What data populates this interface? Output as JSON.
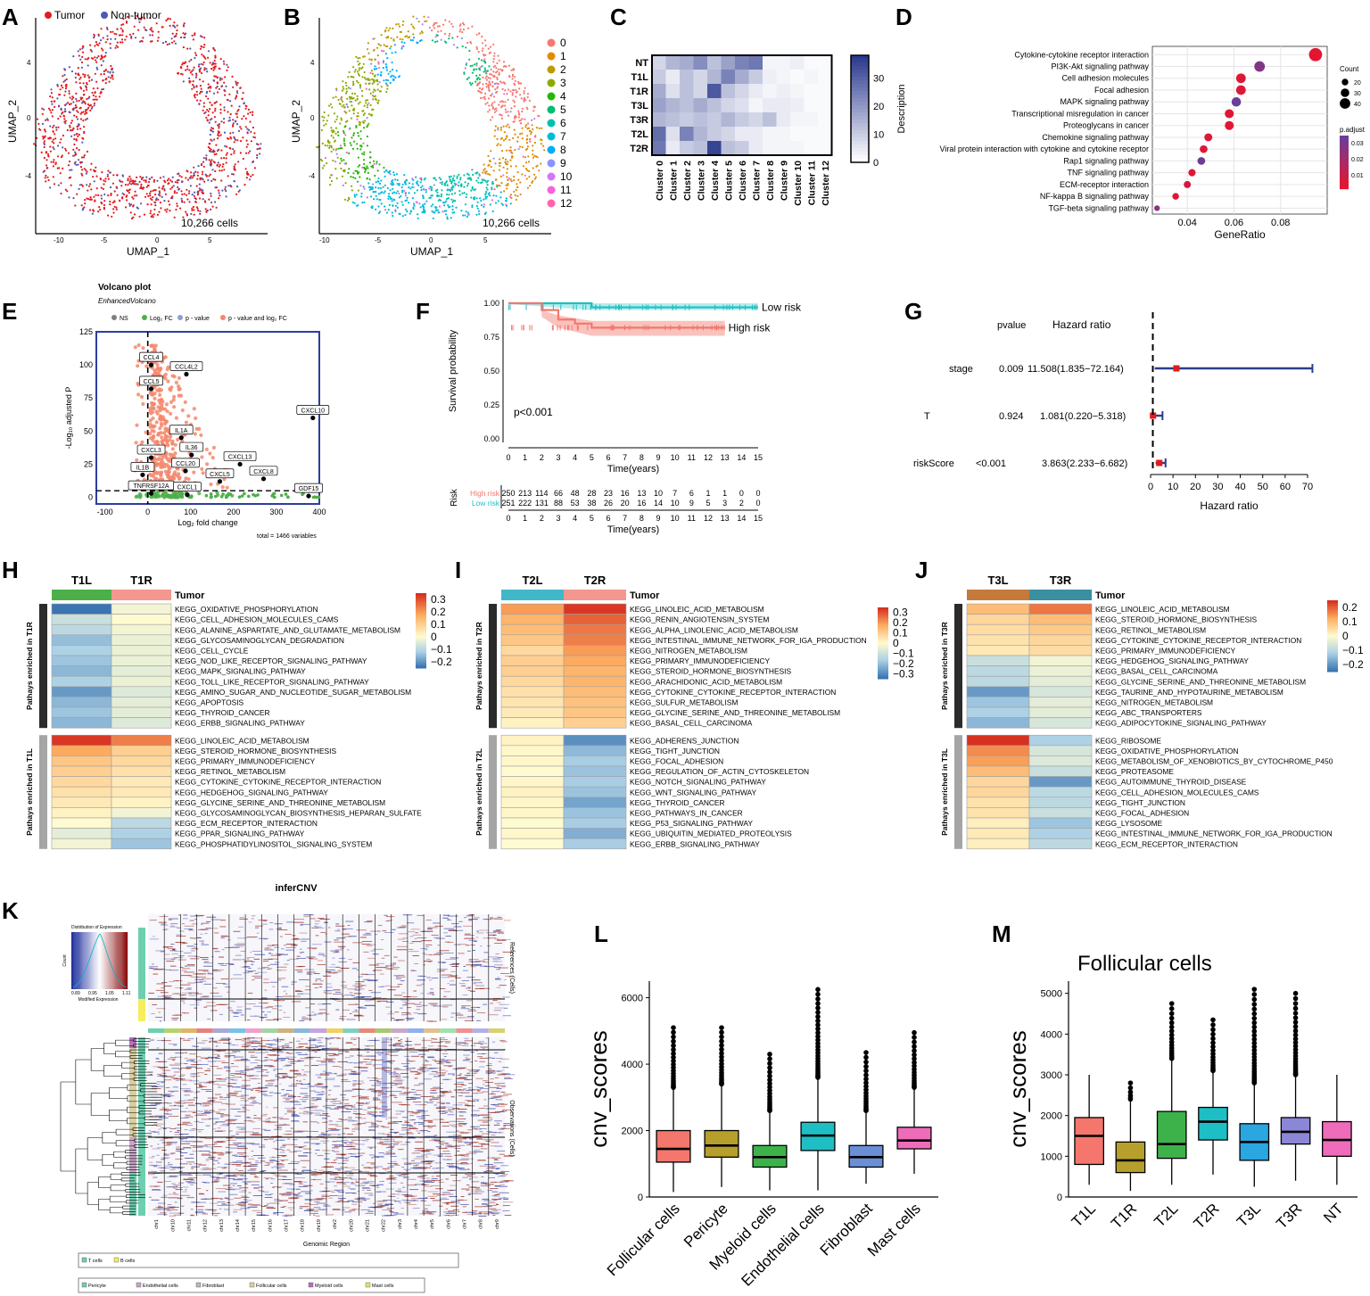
{
  "figure": {
    "panel_letters": [
      "A",
      "B",
      "C",
      "D",
      "E",
      "F",
      "G",
      "H",
      "I",
      "J",
      "K",
      "L",
      "M"
    ]
  },
  "panelA": {
    "legend": [
      "Tumor",
      "Non-tumor"
    ],
    "colors": {
      "tumor": "#e41a1c",
      "nontumor": "#4a5bb8"
    },
    "xlabel": "UMAP_1",
    "ylabel": "UMAP_2",
    "cells": "10,266 cells",
    "xticks": [
      "-10",
      "-5",
      "0",
      "5"
    ],
    "yticks": [
      "4",
      "0",
      "-4"
    ]
  },
  "panelB": {
    "xlabel": "UMAP_1",
    "ylabel": "UMAP_2",
    "cells": "10,266 cells",
    "xticks": [
      "-10",
      "-5",
      "0",
      "5"
    ],
    "yticks": [
      "4",
      "0",
      "-4"
    ],
    "clusters": [
      "0",
      "1",
      "2",
      "3",
      "4",
      "5",
      "6",
      "7",
      "8",
      "9",
      "10",
      "11",
      "12"
    ],
    "cluster_colors": [
      "#f8766d",
      "#e18a00",
      "#be9c00",
      "#8cab00",
      "#24b700",
      "#00be70",
      "#00c1ab",
      "#00bbda",
      "#00acfc",
      "#8b93ff",
      "#d575fe",
      "#f962dd",
      "#ff65ac"
    ]
  },
  "panelC": {
    "rows": [
      "NT",
      "T1L",
      "T1R",
      "T3L",
      "T3R",
      "T2L",
      "T2R"
    ],
    "cols": [
      "Cluster 0",
      "Cluster 1",
      "Cluster 2",
      "Cluster 3",
      "Cluster 4",
      "Cluster 5",
      "Cluster 6",
      "Cluster 7",
      "Cluster 8",
      "Cluster 9",
      "Cluster 10",
      "Cluster 11",
      "Cluster 12"
    ],
    "legend_title": "Description",
    "legend_ticks": [
      "30",
      "20",
      "10",
      "0"
    ],
    "values": [
      [
        8,
        14,
        16,
        22,
        12,
        18,
        24,
        26,
        2,
        2,
        3,
        1,
        1
      ],
      [
        10,
        4,
        12,
        8,
        14,
        24,
        16,
        10,
        3,
        2,
        1,
        2,
        1
      ],
      [
        16,
        6,
        12,
        8,
        32,
        12,
        8,
        4,
        2,
        3,
        2,
        1,
        1
      ],
      [
        18,
        14,
        12,
        16,
        12,
        8,
        6,
        2,
        4,
        4,
        3,
        1,
        1
      ],
      [
        14,
        12,
        10,
        12,
        10,
        14,
        10,
        8,
        12,
        4,
        2,
        2,
        1
      ],
      [
        28,
        6,
        24,
        14,
        10,
        8,
        4,
        4,
        2,
        2,
        1,
        1,
        1
      ],
      [
        26,
        4,
        10,
        12,
        36,
        12,
        10,
        4,
        2,
        2,
        2,
        1,
        1
      ]
    ]
  },
  "panelD": {
    "pathways": [
      "Cytokine-cytokine receptor interaction",
      "PI3K-Akt signaling pathway",
      "Cell adhesion molecules",
      "Focal adhesion",
      "MAPK signaling pathway",
      "Transcriptional misregulation in cancer",
      "Proteoglycans in cancer",
      "Chemokine signaling pathway",
      "Viral protein interaction with cytokine and cytokine receptor",
      "Rap1 signaling pathway",
      "TNF signaling pathway",
      "ECM-receptor interaction",
      "NF-kappa B signaling pathway",
      "TGF-beta signaling pathway"
    ],
    "gene_ratio": [
      0.095,
      0.071,
      0.063,
      0.063,
      0.061,
      0.058,
      0.058,
      0.049,
      0.047,
      0.046,
      0.042,
      0.04,
      0.035,
      0.027
    ],
    "count": [
      45,
      34,
      30,
      30,
      29,
      27,
      27,
      23,
      22,
      22,
      20,
      19,
      17,
      13
    ],
    "padj": [
      0.002,
      0.03,
      0.004,
      0.004,
      0.036,
      0.003,
      0.003,
      0.004,
      0.004,
      0.035,
      0.005,
      0.006,
      0.004,
      0.028
    ],
    "xlabel": "GeneRatio",
    "xticks": [
      "0.04",
      "0.06",
      "0.08"
    ],
    "legend_count_title": "Count",
    "legend_count": [
      "20",
      "30",
      "40"
    ],
    "legend_padj_title": "p.adjust",
    "legend_padj": [
      "0.03",
      "0.02",
      "0.01"
    ]
  },
  "panelE": {
    "title": "Volcano plot",
    "subtitle": "EnhancedVolcano",
    "legend": [
      "NS",
      "Log₂ FC",
      "p - value",
      "p - value and log₂ FC"
    ],
    "legend_colors": [
      "#808080",
      "#4daf4a",
      "#8da0cb",
      "#f4876c"
    ],
    "ylabel": "-Log₁₀ adjusted P",
    "xlabel": "Log₂ fold change",
    "xticks": [
      "-100",
      "0",
      "100",
      "200",
      "300",
      "400"
    ],
    "yticks": [
      "0",
      "25",
      "50",
      "75",
      "100",
      "125"
    ],
    "genes": [
      {
        "name": "CCL4",
        "x": 8,
        "y": 100
      },
      {
        "name": "CCL4L2",
        "x": 90,
        "y": 93
      },
      {
        "name": "CCL5",
        "x": 8,
        "y": 82
      },
      {
        "name": "CXCL10",
        "x": 385,
        "y": 60
      },
      {
        "name": "IL1A",
        "x": 78,
        "y": 45
      },
      {
        "name": "IL36",
        "x": 102,
        "y": 32
      },
      {
        "name": "CXCL3",
        "x": 8,
        "y": 30
      },
      {
        "name": "CXCL13",
        "x": 215,
        "y": 25
      },
      {
        "name": "CCL20",
        "x": 88,
        "y": 20
      },
      {
        "name": "IL1B",
        "x": -12,
        "y": 17
      },
      {
        "name": "CXCL8",
        "x": 270,
        "y": 14
      },
      {
        "name": "CXCL5",
        "x": 168,
        "y": 12
      },
      {
        "name": "TNFRSF12A",
        "x": 8,
        "y": 3
      },
      {
        "name": "CXCL1",
        "x": 92,
        "y": 2
      },
      {
        "name": "GDF15",
        "x": 375,
        "y": 1
      }
    ],
    "footer": "total = 1466 variables"
  },
  "panelF": {
    "ylabel": "Survival probability",
    "xlabel": "Time(years)",
    "pvalue": "p<0.001",
    "series": [
      {
        "name": "Low risk",
        "color": "#1fbfc3",
        "times": [
          0,
          5,
          15
        ],
        "surv": [
          1.0,
          0.97,
          0.97
        ]
      },
      {
        "name": "High risk",
        "color": "#f4766d",
        "times": [
          0,
          2,
          3,
          4,
          5,
          13
        ],
        "surv": [
          1.0,
          0.95,
          0.88,
          0.85,
          0.82,
          0.82
        ]
      }
    ],
    "yticks": [
      "0.00",
      "0.25",
      "0.50",
      "0.75",
      "1.00"
    ],
    "xticks": [
      "0",
      "1",
      "2",
      "3",
      "4",
      "5",
      "6",
      "7",
      "8",
      "9",
      "10",
      "11",
      "12",
      "13",
      "14",
      "15"
    ],
    "risk_title": "Risk",
    "risk_table": {
      "High risk": [
        "250",
        "213",
        "114",
        "66",
        "48",
        "28",
        "23",
        "16",
        "13",
        "10",
        "7",
        "6",
        "1",
        "1",
        "0",
        "0"
      ],
      "Low risk": [
        "251",
        "222",
        "131",
        "88",
        "53",
        "38",
        "26",
        "20",
        "16",
        "14",
        "10",
        "9",
        "5",
        "3",
        "2",
        "0"
      ]
    }
  },
  "panelG": {
    "headers": [
      "pvalue",
      "Hazard ratio"
    ],
    "rows": [
      {
        "name": "stage",
        "pvalue": "0.009",
        "hr": "11.508(1.835−72.164)",
        "est": 11.508,
        "lo": 1.835,
        "hi": 72.164
      },
      {
        "name": "T",
        "pvalue": "0.924",
        "hr": "1.081(0.220−5.318)",
        "est": 1.081,
        "lo": 0.22,
        "hi": 5.318
      },
      {
        "name": "riskScore",
        "pvalue": "<0.001",
        "hr": "3.863(2.233−6.682)",
        "est": 3.863,
        "lo": 2.233,
        "hi": 6.682
      }
    ],
    "xlabel": "Hazard ratio",
    "xticks": [
      "0",
      "10",
      "20",
      "30",
      "40",
      "50",
      "60",
      "70"
    ]
  },
  "panelH": {
    "cols": [
      "T1L",
      "T1R"
    ],
    "col_colors": [
      "#4daf4a",
      "#f4978e"
    ],
    "tumor_label": "Tumor",
    "group1": "Pathays enriched in T1R",
    "group2": "Pathays enriched in T1L",
    "legend": [
      "0.3",
      "0.2",
      "0.1",
      "0",
      "−0.1",
      "−0.2"
    ],
    "lmin": -0.25,
    "lmax": 0.35,
    "pathways": [
      "KEGG_OXIDATIVE_PHOSPHORYLATION",
      "KEGG_CELL_ADHESION_MOLECULES_CAMS",
      "KEGG_ALANINE_ASPARTATE_AND_GLUTAMATE_METABOLISM",
      "KEGG_GLYCOSAMINOGLYCAN_DEGRADATION",
      "KEGG_CELL_CYCLE",
      "KEGG_NOD_LIKE_RECEPTOR_SIGNALING_PATHWAY",
      "KEGG_MAPK_SIGNALING_PATHWAY",
      "KEGG_TOLL_LIKE_RECEPTOR_SIGNALING_PATHWAY",
      "KEGG_AMINO_SUGAR_AND_NUCLEOTIDE_SUGAR_METABOLISM",
      "KEGG_APOPTOSIS",
      "KEGG_THYROID_CANCER",
      "KEGG_ERBB_SIGNALING_PATHWAY",
      "KEGG_LINOLEIC_ACID_METABOLISM",
      "KEGG_STEROID_HORMONE_BIOSYNTHESIS",
      "KEGG_PRIMARY_IMMUNODEFICIENCY",
      "KEGG_RETINOL_METABOLISM",
      "KEGG_CYTOKINE_CYTOKINE_RECEPTOR_INTERACTION",
      "KEGG_HEDGEHOG_SIGNALING_PATHWAY",
      "KEGG_GLYCINE_SERINE_AND_THREONINE_METABOLISM",
      "KEGG_GLYCOSAMINOGLYCAN_BIOSYNTHESIS_HEPARAN_SULFATE",
      "KEGG_ECM_RECEPTOR_INTERACTION",
      "KEGG_PPAR_SIGNALING_PATHWAY",
      "KEGG_PHOSPHATIDYLINOSITOL_SIGNALING_SYSTEM"
    ],
    "values": [
      [
        -0.25,
        -0.02
      ],
      [
        -0.08,
        0.0
      ],
      [
        -0.1,
        -0.02
      ],
      [
        -0.15,
        -0.03
      ],
      [
        -0.12,
        -0.03
      ],
      [
        -0.14,
        -0.03
      ],
      [
        -0.16,
        -0.04
      ],
      [
        -0.12,
        -0.03
      ],
      [
        -0.2,
        -0.05
      ],
      [
        -0.16,
        -0.04
      ],
      [
        -0.14,
        -0.04
      ],
      [
        -0.16,
        -0.05
      ],
      [
        0.34,
        0.24
      ],
      [
        0.18,
        0.1
      ],
      [
        0.12,
        0.08
      ],
      [
        0.1,
        0.06
      ],
      [
        0.08,
        0.04
      ],
      [
        0.06,
        0.04
      ],
      [
        0.04,
        0.02
      ],
      [
        0.02,
        -0.02
      ],
      [
        0.0,
        -0.1
      ],
      [
        -0.04,
        -0.12
      ],
      [
        -0.02,
        -0.14
      ]
    ]
  },
  "panelI": {
    "cols": [
      "T2L",
      "T2R"
    ],
    "col_colors": [
      "#40b8c8",
      "#f4978e"
    ],
    "tumor_label": "Tumor",
    "group1": "Pathays enriched in T2R",
    "group2": "Pathays enriched in T2L",
    "legend": [
      "0.3",
      "0.2",
      "0.1",
      "0",
      "−0.1",
      "−0.2",
      "−0.3"
    ],
    "lmin": -0.35,
    "lmax": 0.35,
    "pathways": [
      "KEGG_LINOLEIC_ACID_METABOLISM",
      "KEGG_RENIN_ANGIOTENSIN_SYSTEM",
      "KEGG_ALPHA_LINOLENIC_ACID_METABOLISM",
      "KEGG_INTESTINAL_IMMUNE_NETWORK_FOR_IGA_PRODUCTION",
      "KEGG_NITROGEN_METABOLISM",
      "KEGG_PRIMARY_IMMUNODEFICIENCY",
      "KEGG_STEROID_HORMONE_BIOSYNTHESIS",
      "KEGG_ARACHIDONIC_ACID_METABOLISM",
      "KEGG_CYTOKINE_CYTOKINE_RECEPTOR_INTERACTION",
      "KEGG_SULFUR_METABOLISM",
      "KEGG_GLYCINE_SERINE_AND_THREONINE_METABOLISM",
      "KEGG_BASAL_CELL_CARCINOMA",
      "KEGG_ADHERENS_JUNCTION",
      "KEGG_TIGHT_JUNCTION",
      "KEGG_FOCAL_ADHESION",
      "KEGG_REGULATION_OF_ACTIN_CYTOSKELETON",
      "KEGG_NOTCH_SIGNALING_PATHWAY",
      "KEGG_WNT_SIGNALING_PATHWAY",
      "KEGG_THYROID_CANCER",
      "KEGG_PATHWAYS_IN_CANCER",
      "KEGG_P53_SIGNALING_PATHWAY",
      "KEGG_UBIQUITIN_MEDIATED_PROTEOLYSIS",
      "KEGG_ERBB_SIGNALING_PATHWAY"
    ],
    "values": [
      [
        0.2,
        0.34
      ],
      [
        0.16,
        0.28
      ],
      [
        0.14,
        0.25
      ],
      [
        0.12,
        0.24
      ],
      [
        0.08,
        0.2
      ],
      [
        0.1,
        0.18
      ],
      [
        0.1,
        0.16
      ],
      [
        0.08,
        0.16
      ],
      [
        0.06,
        0.14
      ],
      [
        0.05,
        0.13
      ],
      [
        0.04,
        0.12
      ],
      [
        0.02,
        0.1
      ],
      [
        0.02,
        -0.3
      ],
      [
        0.01,
        -0.22
      ],
      [
        0.01,
        -0.18
      ],
      [
        0.0,
        -0.2
      ],
      [
        0.01,
        -0.18
      ],
      [
        0.02,
        -0.2
      ],
      [
        0.01,
        -0.26
      ],
      [
        0.01,
        -0.2
      ],
      [
        0.0,
        -0.18
      ],
      [
        0.01,
        -0.24
      ],
      [
        0.0,
        -0.18
      ]
    ]
  },
  "panelJ": {
    "cols": [
      "T3L",
      "T3R"
    ],
    "col_colors": [
      "#c47a3a",
      "#3a8fa0"
    ],
    "tumor_label": "Tumor",
    "group1": "Pathays enriched in T3R",
    "group2": "Pathays enriched in T3L",
    "legend": [
      "0.2",
      "0.1",
      "0",
      "−0.1",
      "−0.2"
    ],
    "lmin": -0.25,
    "lmax": 0.25,
    "pathways": [
      "KEGG_LINOLEIC_ACID_METABOLISM",
      "KEGG_STEROID_HORMONE_BIOSYNTHESIS",
      "KEGG_RETINOL_METABOLISM",
      "KEGG_CYTOKINE_CYTOKINE_RECEPTOR_INTERACTION",
      "KEGG_PRIMARY_IMMUNODEFICIENCY",
      "KEGG_HEDGEHOG_SIGNALING_PATHWAY",
      "KEGG_BASAL_CELL_CARCINOMA",
      "KEGG_GLYCINE_SERINE_AND_THREONINE_METABOLISM",
      "KEGG_TAURINE_AND_HYPOTAURINE_METABOLISM",
      "KEGG_NITROGEN_METABOLISM",
      "KEGG_ABC_TRANSPORTERS",
      "KEGG_ADIPOCYTOKINE_SIGNALING_PATHWAY",
      "KEGG_RIBOSOME",
      "KEGG_OXIDATIVE_PHOSPHORYLATION",
      "KEGG_METABOLISM_OF_XENOBIOTICS_BY_CYTOCHROME_P450",
      "KEGG_PROTEASOME",
      "KEGG_AUTOIMMUNE_THYROID_DISEASE",
      "KEGG_CELL_ADHESION_MOLECULES_CAMS",
      "KEGG_TIGHT_JUNCTION",
      "KEGG_FOCAL_ADHESION",
      "KEGG_LYSOSOME",
      "KEGG_INTESTINAL_IMMUNE_NETWORK_FOR_IGA_PRODUCTION",
      "KEGG_ECM_RECEPTOR_INTERACTION"
    ],
    "values": [
      [
        0.1,
        0.18
      ],
      [
        0.06,
        0.1
      ],
      [
        0.05,
        0.08
      ],
      [
        0.04,
        0.06
      ],
      [
        0.03,
        0.05
      ],
      [
        -0.08,
        -0.02
      ],
      [
        -0.1,
        -0.03
      ],
      [
        -0.1,
        -0.04
      ],
      [
        -0.2,
        -0.06
      ],
      [
        -0.14,
        -0.04
      ],
      [
        -0.12,
        -0.04
      ],
      [
        -0.16,
        -0.06
      ],
      [
        0.25,
        -0.12
      ],
      [
        0.16,
        -0.06
      ],
      [
        0.14,
        -0.05
      ],
      [
        0.1,
        -0.08
      ],
      [
        0.06,
        -0.2
      ],
      [
        0.06,
        -0.1
      ],
      [
        0.04,
        -0.1
      ],
      [
        0.04,
        -0.08
      ],
      [
        0.02,
        -0.14
      ],
      [
        0.03,
        -0.12
      ],
      [
        0.02,
        -0.1
      ]
    ]
  },
  "panelK": {
    "title": "inferCNV",
    "color_key_title": "Distribution of Expression",
    "color_key_xlabel": "Modified Expression",
    "color_key_ylabel": "Count",
    "color_key_ticks": [
      "0.89",
      "0.95",
      "1.05",
      "1.11"
    ],
    "ref_label": "References (Cells)",
    "obs_label": "Observations (Cells)",
    "xlabel": "Genomic Region",
    "chromosomes": [
      "chr1",
      "chr10",
      "chr11",
      "chr12",
      "chr13",
      "chr14",
      "chr15",
      "chr16",
      "chr17",
      "chr18",
      "chr19",
      "chr2",
      "chr20",
      "chr21",
      "chr22",
      "chr3",
      "chr4",
      "chr5",
      "chr6",
      "chr7",
      "chr8",
      "chr9"
    ],
    "legend1": [
      "T cells",
      "B cells"
    ],
    "legend1_colors": [
      "#6dcfb0",
      "#f4ef5a"
    ],
    "legend2": [
      "Pericyte",
      "Endothelial cells",
      "Fibroblast",
      "Follicular cells",
      "Myeloid cells",
      "Mast cells"
    ],
    "legend2_colors": [
      "#6dcfb0",
      "#c9a5c8",
      "#b8b8b8",
      "#d9cfa0",
      "#b76fbf",
      "#e8e06a"
    ]
  },
  "panelL": {
    "ylabel": "cnv_scores",
    "yticks": [
      "0",
      "2000",
      "4000",
      "6000"
    ],
    "chart_data": {
      "type": "box",
      "categories": [
        "Follicular cells",
        "Pericyte",
        "Myeloid cells",
        "Endothelial cells",
        "Fibroblast",
        "Mast cells"
      ],
      "colors": [
        "#f4766d",
        "#b79f2c",
        "#3eb24a",
        "#1dbfc4",
        "#6a8fd4",
        "#ee6cba"
      ],
      "q1": [
        1050,
        1200,
        900,
        1400,
        900,
        1450
      ],
      "median": [
        1450,
        1550,
        1200,
        1850,
        1200,
        1700
      ],
      "q3": [
        2000,
        2000,
        1550,
        2250,
        1550,
        2100
      ],
      "whisker_lo": [
        150,
        300,
        200,
        200,
        400,
        700
      ],
      "whisker_hi": [
        3300,
        3400,
        2600,
        3600,
        2600,
        3300
      ],
      "outlier_max": [
        5100,
        5100,
        4300,
        6250,
        4350,
        4950
      ],
      "ylim": [
        0,
        6500
      ]
    }
  },
  "panelM": {
    "title": "Follicular cells",
    "ylabel": "cnv_scores",
    "yticks": [
      "0",
      "1000",
      "2000",
      "3000",
      "4000",
      "5000"
    ],
    "chart_data": {
      "type": "box",
      "categories": [
        "T1L",
        "T1R",
        "T2L",
        "T2R",
        "T3L",
        "T3R",
        "NT"
      ],
      "colors": [
        "#f4766d",
        "#b79f2c",
        "#3eb24a",
        "#1dbfc4",
        "#2aa6e0",
        "#8b86d6",
        "#ee6cba"
      ],
      "q1": [
        800,
        600,
        950,
        1400,
        900,
        1300,
        1000
      ],
      "median": [
        1500,
        900,
        1300,
        1850,
        1350,
        1600,
        1400
      ],
      "q3": [
        1950,
        1350,
        2100,
        2200,
        1800,
        1950,
        1850
      ],
      "whisker_lo": [
        300,
        150,
        300,
        550,
        250,
        400,
        300
      ],
      "whisker_hi": [
        3000,
        2400,
        3400,
        3100,
        2800,
        3000,
        3000
      ],
      "outlier_max": [
        null,
        2800,
        4750,
        4350,
        5100,
        5000,
        null
      ],
      "ylim": [
        0,
        5300
      ]
    }
  }
}
